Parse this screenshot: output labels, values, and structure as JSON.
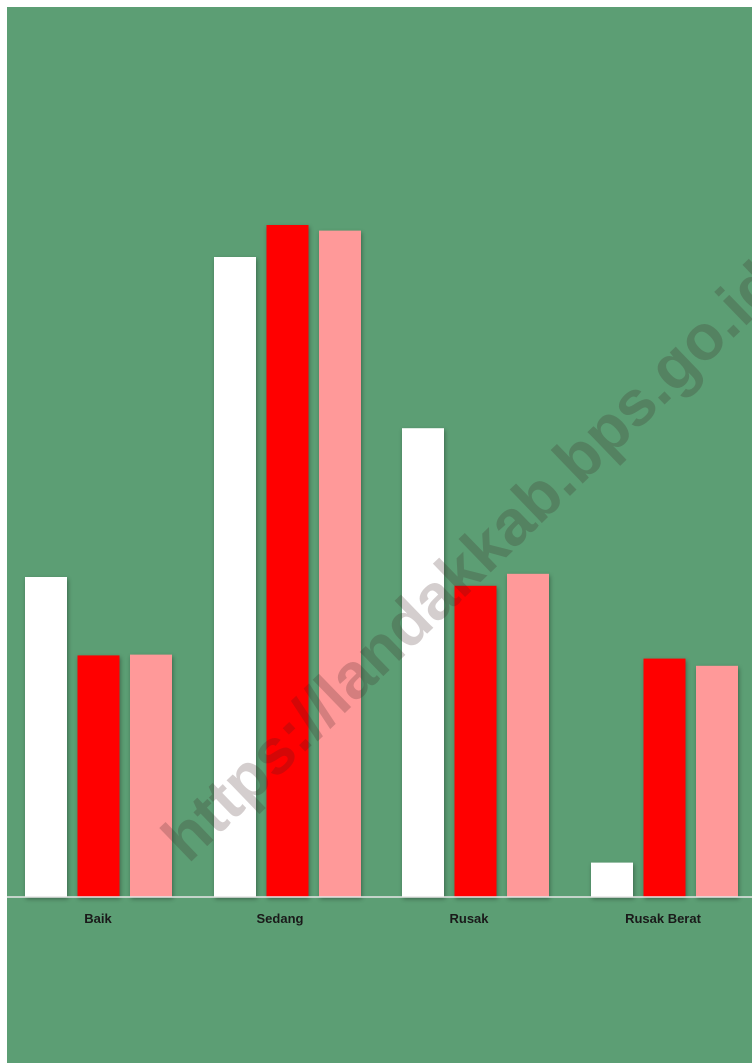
{
  "colors": {
    "background": "#5c9e74",
    "axis": "#e6e6e6",
    "series": [
      "#ffffff",
      "#ff0000",
      "#ff9999"
    ]
  },
  "watermark": "https://landakkab.bps.go.id",
  "chart_data": {
    "type": "bar",
    "categories": [
      "Baik",
      "Sedang",
      "Rusak",
      "Rusak Berat"
    ],
    "series": [
      {
        "values": [
          400,
          800,
          586,
          43
        ]
      },
      {
        "values": [
          302,
          840,
          389,
          298
        ]
      },
      {
        "values": [
          303,
          833,
          404,
          289
        ]
      }
    ],
    "ylim": [
      0,
      1000
    ],
    "grid": false,
    "legend": "none"
  }
}
